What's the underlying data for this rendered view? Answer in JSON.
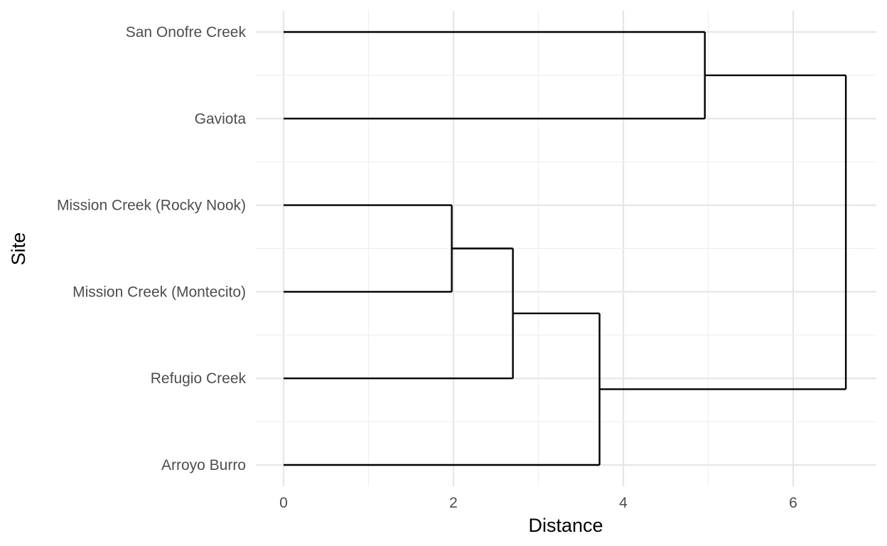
{
  "chart_data": {
    "type": "dendrogram",
    "orientation": "horizontal",
    "xlabel": "Distance",
    "ylabel": "Site",
    "xlim": [
      0,
      7
    ],
    "x_ticks": [
      0,
      2,
      4,
      6
    ],
    "grid": true,
    "leaves": [
      "San Onofre Creek",
      "Gaviota",
      "Mission Creek (Rocky Nook)",
      "Mission Creek (Montecito)",
      "Refugio Creek",
      "Arroyo Burro"
    ],
    "merges": [
      {
        "id": "m1",
        "children": [
          "Mission Creek (Rocky Nook)",
          "Mission Creek (Montecito)"
        ],
        "height": 1.98
      },
      {
        "id": "m2",
        "children": [
          "m1",
          "Refugio Creek"
        ],
        "height": 2.7
      },
      {
        "id": "m3",
        "children": [
          "m2",
          "Arroyo Burro"
        ],
        "height": 3.72
      },
      {
        "id": "m4",
        "children": [
          "San Onofre Creek",
          "Gaviota"
        ],
        "height": 4.96
      },
      {
        "id": "m5",
        "children": [
          "m4",
          "m3"
        ],
        "height": 6.62
      }
    ]
  }
}
